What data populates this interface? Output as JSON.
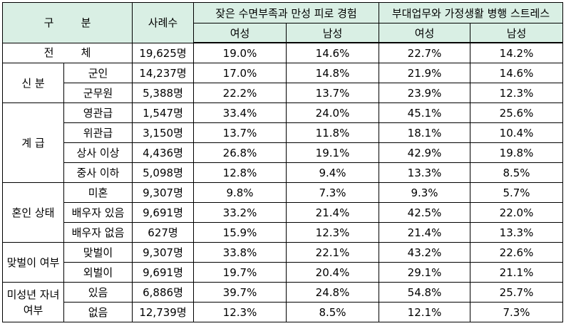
{
  "table": {
    "header": {
      "category": "구        분",
      "count": "사례수",
      "group1": "잦은 수면부족과 만성 피로 경험",
      "group2": "부대업무와 가정생활 병행 스트레스",
      "female": "여성",
      "male": "남성"
    },
    "groups": [
      {
        "label": "전        체",
        "rows": [
          {
            "sub": "",
            "count": "19,625명",
            "g1_f": "19.0%",
            "g1_m": "14.6%",
            "g2_f": "22.7%",
            "g2_m": "14.2%"
          }
        ]
      },
      {
        "label": "신 분",
        "rows": [
          {
            "sub": "군인",
            "count": "14,237명",
            "g1_f": "17.0%",
            "g1_m": "14.8%",
            "g2_f": "21.9%",
            "g2_m": "14.6%"
          },
          {
            "sub": "군무원",
            "count": "5,388명",
            "g1_f": "22.2%",
            "g1_m": "13.7%",
            "g2_f": "23.9%",
            "g2_m": "12.3%"
          }
        ]
      },
      {
        "label": "계 급",
        "rows": [
          {
            "sub": "영관급",
            "count": "1,547명",
            "g1_f": "33.4%",
            "g1_m": "24.0%",
            "g2_f": "45.1%",
            "g2_m": "25.6%"
          },
          {
            "sub": "위관급",
            "count": "3,150명",
            "g1_f": "13.7%",
            "g1_m": "11.8%",
            "g2_f": "18.1%",
            "g2_m": "10.4%"
          },
          {
            "sub": "상사 이상",
            "count": "4,436명",
            "g1_f": "26.8%",
            "g1_m": "19.1%",
            "g2_f": "42.9%",
            "g2_m": "19.8%"
          },
          {
            "sub": "중사 이하",
            "count": "5,098명",
            "g1_f": "12.8%",
            "g1_m": "9.4%",
            "g2_f": "13.3%",
            "g2_m": "8.5%"
          }
        ]
      },
      {
        "label": "혼인 상태",
        "rows": [
          {
            "sub": "미혼",
            "count": "9,307명",
            "g1_f": "9.8%",
            "g1_m": "7.3%",
            "g2_f": "9.3%",
            "g2_m": "5.7%"
          },
          {
            "sub": "배우자 있음",
            "count": "9,691명",
            "g1_f": "33.2%",
            "g1_m": "21.4%",
            "g2_f": "42.5%",
            "g2_m": "22.0%"
          },
          {
            "sub": "배우자 없음",
            "count": "627명",
            "g1_f": "15.9%",
            "g1_m": "12.3%",
            "g2_f": "21.4%",
            "g2_m": "13.3%"
          }
        ]
      },
      {
        "label": "맞벌이 여부",
        "rows": [
          {
            "sub": "맞벌이",
            "count": "9,307명",
            "g1_f": "33.8%",
            "g1_m": "22.1%",
            "g2_f": "43.2%",
            "g2_m": "22.6%"
          },
          {
            "sub": "외벌이",
            "count": "9,691명",
            "g1_f": "19.7%",
            "g1_m": "20.4%",
            "g2_f": "29.1%",
            "g2_m": "21.1%"
          }
        ]
      },
      {
        "label": "미성년 자녀 여부",
        "rows": [
          {
            "sub": "있음",
            "count": "6,886명",
            "g1_f": "39.7%",
            "g1_m": "24.8%",
            "g2_f": "54.8%",
            "g2_m": "25.7%"
          },
          {
            "sub": "없음",
            "count": "12,739명",
            "g1_f": "12.3%",
            "g1_m": "8.5%",
            "g2_f": "12.1%",
            "g2_m": "7.3%"
          }
        ]
      }
    ]
  }
}
